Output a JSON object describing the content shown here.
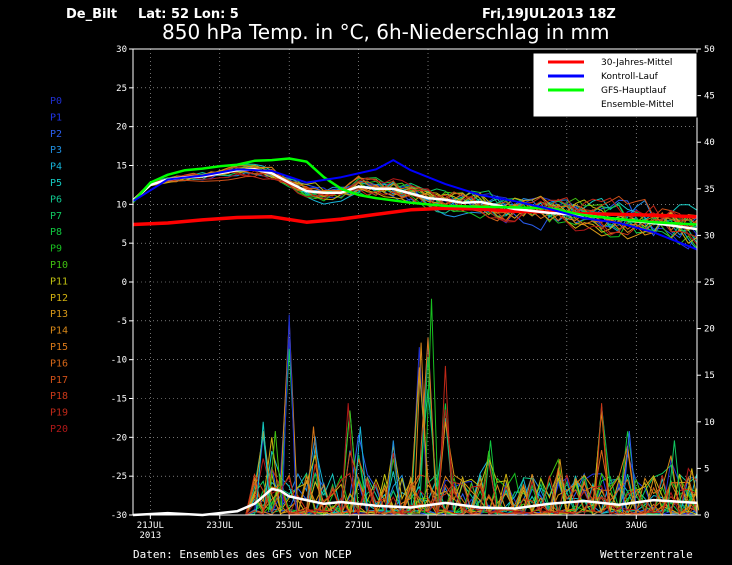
{
  "header": {
    "station": "De_Bilt",
    "latlon": "Lat: 52 Lon: 5",
    "datetime": "Fri,19JUL2013 18Z",
    "title": "850 hPa Temp. in °C, 6h-Niederschlag in mm"
  },
  "footer": {
    "source": "Daten: Ensembles des GFS von NCEP",
    "brand": "Wetterzentrale"
  },
  "members": [
    {
      "label": "P0",
      "color": "#1f2fd0"
    },
    {
      "label": "P1",
      "color": "#2035e8"
    },
    {
      "label": "P2",
      "color": "#2a5ef0"
    },
    {
      "label": "P3",
      "color": "#1f8fe0"
    },
    {
      "label": "P4",
      "color": "#16b4d8"
    },
    {
      "label": "P5",
      "color": "#14c8c0"
    },
    {
      "label": "P6",
      "color": "#10c890"
    },
    {
      "label": "P7",
      "color": "#10c860"
    },
    {
      "label": "P8",
      "color": "#10c840"
    },
    {
      "label": "P9",
      "color": "#18c020"
    },
    {
      "label": "P10",
      "color": "#40c010"
    },
    {
      "label": "P11",
      "color": "#c0c010"
    },
    {
      "label": "P12",
      "color": "#d0b010"
    },
    {
      "label": "P13",
      "color": "#d89818"
    },
    {
      "label": "P14",
      "color": "#d88818"
    },
    {
      "label": "P15",
      "color": "#d87818"
    },
    {
      "label": "P16",
      "color": "#d86818"
    },
    {
      "label": "P17",
      "color": "#d05018"
    },
    {
      "label": "P18",
      "color": "#c83818"
    },
    {
      "label": "P19",
      "color": "#c02818"
    },
    {
      "label": "P20",
      "color": "#b01818"
    }
  ],
  "chart_data": {
    "type": "line",
    "x_range": [
      0,
      16.25
    ],
    "x_unit": "days after 20JUL2013 00Z",
    "x_ticks": [
      {
        "x": 0.5,
        "label": "21JUL",
        "sub": "2013"
      },
      {
        "x": 2.5,
        "label": "23JUL"
      },
      {
        "x": 4.5,
        "label": "25JUL"
      },
      {
        "x": 6.5,
        "label": "27JUL"
      },
      {
        "x": 8.5,
        "label": "29JUL"
      },
      {
        "x": 12.5,
        "label": "1AUG"
      },
      {
        "x": 14.5,
        "label": "3AUG"
      }
    ],
    "y_left": {
      "min": -30,
      "max": 30,
      "step": 5
    },
    "y_right": {
      "min": 0,
      "max": 50,
      "step": 5
    },
    "grid": true,
    "legend_position": "top-right",
    "legend": [
      {
        "label": "30-Jahres-Mittel",
        "color": "#ff0000"
      },
      {
        "label": "Kontroll-Lauf",
        "color": "#0000ff"
      },
      {
        "label": "GFS-Hauptlauf",
        "color": "#00ff00"
      },
      {
        "label": "Ensemble-Mittel",
        "color": "#ffffff"
      }
    ],
    "series": [
      {
        "name": "30-Jahres-Mittel",
        "color": "#ff0000",
        "width": 3.5,
        "axis": "left",
        "x": [
          0,
          1,
          2,
          3,
          4,
          5,
          6,
          7,
          8,
          9,
          10,
          11,
          12,
          13,
          14,
          15,
          16.25
        ],
        "y": [
          7.4,
          7.6,
          8.0,
          8.3,
          8.4,
          7.7,
          8.1,
          8.7,
          9.3,
          9.5,
          9.4,
          9.1,
          9.0,
          8.8,
          8.7,
          8.6,
          8.4
        ]
      },
      {
        "name": "Ensemble-Mittel (Temp.)",
        "color": "#ffffff",
        "width": 2.5,
        "axis": "left",
        "x": [
          0,
          0.5,
          1,
          1.5,
          2,
          2.5,
          3,
          3.5,
          4,
          4.5,
          5,
          5.5,
          6,
          6.5,
          7,
          7.5,
          8,
          8.5,
          9,
          9.5,
          10,
          11,
          12,
          13,
          14,
          15,
          16.25
        ],
        "y": [
          10.5,
          12.5,
          13.2,
          13.5,
          13.6,
          14.0,
          14.4,
          14.5,
          14.0,
          12.8,
          11.7,
          11.5,
          11.5,
          12.3,
          12.0,
          12.0,
          11.4,
          10.8,
          10.6,
          10.2,
          10.3,
          9.4,
          8.9,
          8.6,
          8.1,
          7.6,
          6.8
        ]
      },
      {
        "name": "GFS-Hauptlauf",
        "color": "#00ff00",
        "width": 2.5,
        "axis": "left",
        "x": [
          0,
          0.5,
          1,
          1.5,
          2,
          2.5,
          3,
          3.5,
          4,
          4.5,
          5,
          5.5,
          6,
          6.5,
          7,
          8,
          9,
          10,
          11,
          12,
          13,
          14,
          15,
          16.25
        ],
        "y": [
          10.3,
          12.8,
          13.8,
          14.4,
          14.6,
          14.9,
          15.1,
          15.6,
          15.7,
          15.9,
          15.5,
          13.5,
          12.0,
          11.2,
          10.8,
          10.2,
          9.8,
          9.7,
          9.6,
          9.5,
          8.6,
          8.1,
          7.7,
          7.4
        ]
      },
      {
        "name": "Kontroll-Lauf",
        "color": "#0000ff",
        "width": 2,
        "axis": "left",
        "x": [
          0,
          1,
          2,
          3,
          4,
          5,
          6,
          7,
          7.5,
          8,
          9,
          10,
          11,
          12,
          13,
          14,
          15,
          16.25
        ],
        "y": [
          10.4,
          13.2,
          13.7,
          14.5,
          14.3,
          12.8,
          13.5,
          14.5,
          15.7,
          14.4,
          12.6,
          11.2,
          10.4,
          9.4,
          8.2,
          7.6,
          6.4,
          4.2
        ]
      },
      {
        "name": "Ensemble-Mittel (Niederschlag)",
        "color": "#ffffff",
        "width": 2.5,
        "axis": "right",
        "x": [
          0,
          1,
          2,
          3,
          3.5,
          4,
          4.25,
          4.5,
          5,
          5.5,
          6,
          7,
          8,
          9,
          10,
          11,
          12,
          13,
          14,
          15,
          16.25
        ],
        "y": [
          0.0,
          0.2,
          0.0,
          0.4,
          1.2,
          2.8,
          2.6,
          2.0,
          1.6,
          1.2,
          1.4,
          1.0,
          0.8,
          1.3,
          0.8,
          0.7,
          1.2,
          1.5,
          1.1,
          1.6,
          1.3
        ]
      }
    ],
    "precip_peaks": [
      {
        "x": 4.5,
        "mm": 21.5
      },
      {
        "x": 3.75,
        "mm": 10
      },
      {
        "x": 4.1,
        "mm": 9
      },
      {
        "x": 5.2,
        "mm": 9.5
      },
      {
        "x": 6.2,
        "mm": 12
      },
      {
        "x": 6.55,
        "mm": 9.5
      },
      {
        "x": 8.6,
        "mm": 23.2
      },
      {
        "x": 8.3,
        "mm": 18.5
      },
      {
        "x": 9.0,
        "mm": 16
      },
      {
        "x": 7.5,
        "mm": 8
      },
      {
        "x": 10.3,
        "mm": 8
      },
      {
        "x": 12.3,
        "mm": 6
      },
      {
        "x": 13.5,
        "mm": 12
      },
      {
        "x": 14.3,
        "mm": 9
      },
      {
        "x": 15.6,
        "mm": 8
      },
      {
        "x": 16.1,
        "mm": 5
      }
    ]
  }
}
